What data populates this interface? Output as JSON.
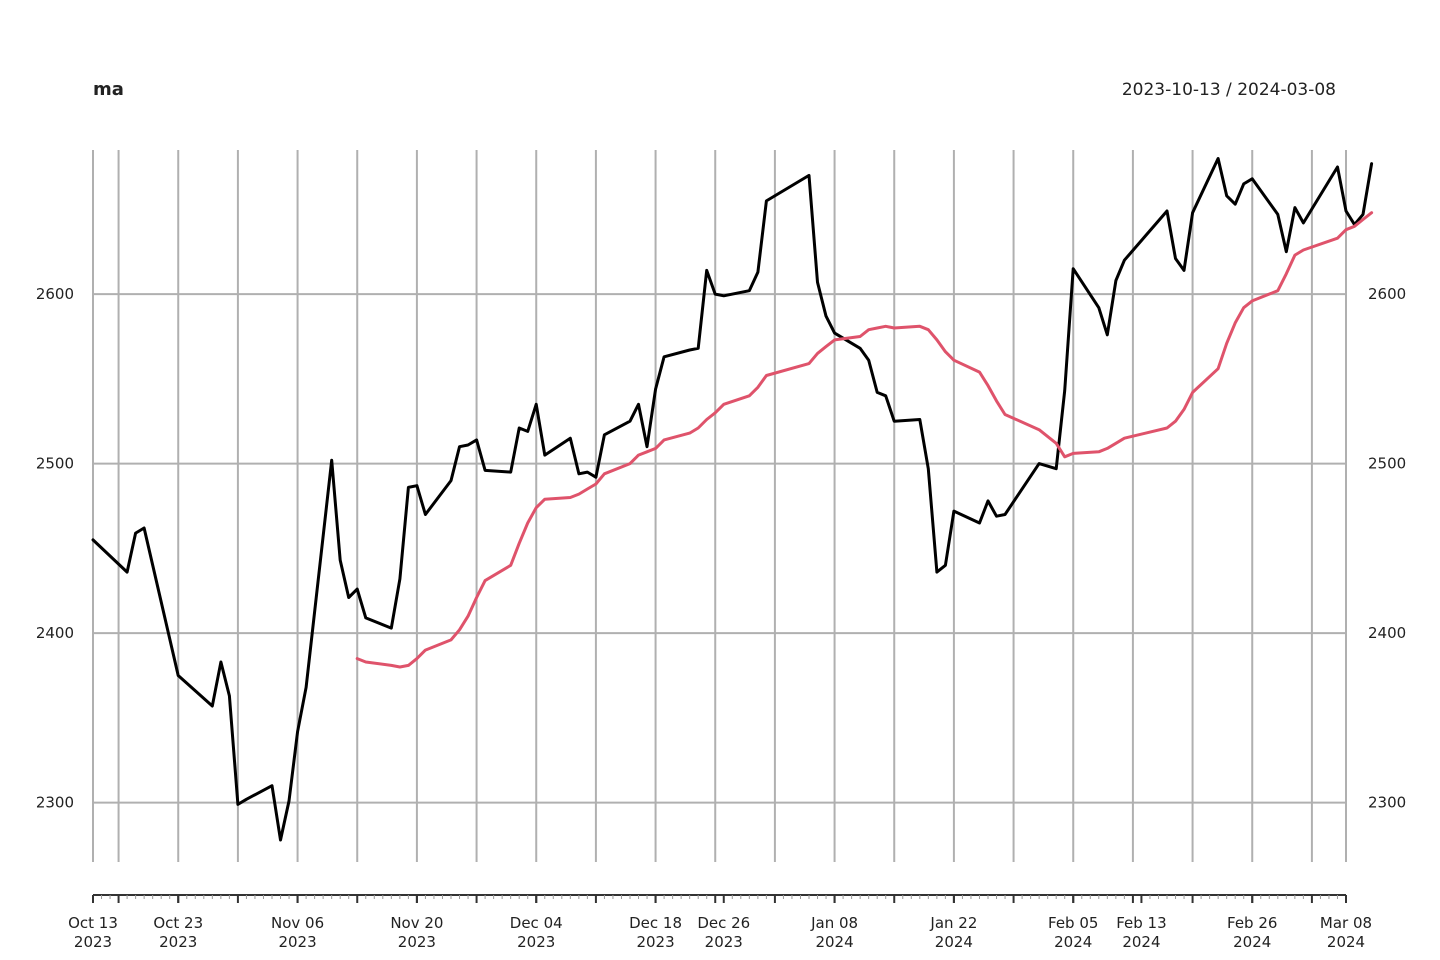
{
  "chart_data": {
    "type": "line",
    "title": "ma",
    "date_range_label": "2023-10-13 / 2024-03-08",
    "xlabel": "",
    "ylabel": "",
    "ylim": [
      2265,
      2685
    ],
    "y_ticks": [
      2300,
      2400,
      2500,
      2600
    ],
    "x_range": [
      "2023-10-13",
      "2024-03-08"
    ],
    "grid": true,
    "x_ticks": [
      {
        "date": "2023-10-13",
        "line1": "Oct 13",
        "line2": "2023"
      },
      {
        "date": "2023-10-23",
        "line1": "Oct 23",
        "line2": "2023"
      },
      {
        "date": "2023-11-06",
        "line1": "Nov 06",
        "line2": "2023"
      },
      {
        "date": "2023-11-20",
        "line1": "Nov 20",
        "line2": "2023"
      },
      {
        "date": "2023-12-04",
        "line1": "Dec 04",
        "line2": "2023"
      },
      {
        "date": "2023-12-18",
        "line1": "Dec 18",
        "line2": "2023"
      },
      {
        "date": "2023-12-26",
        "line1": "Dec 26",
        "line2": "2023"
      },
      {
        "date": "2024-01-08",
        "line1": "Jan 08",
        "line2": "2024"
      },
      {
        "date": "2024-01-22",
        "line1": "Jan 22",
        "line2": "2024"
      },
      {
        "date": "2024-02-05",
        "line1": "Feb 05",
        "line2": "2024"
      },
      {
        "date": "2024-02-13",
        "line1": "Feb 13",
        "line2": "2024"
      },
      {
        "date": "2024-02-26",
        "line1": "Feb 26",
        "line2": "2024"
      },
      {
        "date": "2024-03-08",
        "line1": "Mar 08",
        "line2": "2024"
      }
    ],
    "series": [
      {
        "color": "#000000",
        "points": [
          [
            "2023-10-13",
            2455
          ],
          [
            "2023-10-17",
            2436
          ],
          [
            "2023-10-18",
            2459
          ],
          [
            "2023-10-19",
            2462
          ],
          [
            "2023-10-23",
            2375
          ],
          [
            "2023-10-27",
            2357
          ],
          [
            "2023-10-28",
            2383
          ],
          [
            "2023-10-29",
            2363
          ],
          [
            "2023-10-30",
            2299
          ],
          [
            "2023-10-31",
            2302
          ],
          [
            "2023-11-03",
            2310
          ],
          [
            "2023-11-04",
            2278
          ],
          [
            "2023-11-05",
            2301
          ],
          [
            "2023-11-06",
            2342
          ],
          [
            "2023-11-07",
            2368
          ],
          [
            "2023-11-10",
            2502
          ],
          [
            "2023-11-11",
            2443
          ],
          [
            "2023-11-12",
            2421
          ],
          [
            "2023-11-13",
            2426
          ],
          [
            "2023-11-14",
            2409
          ],
          [
            "2023-11-17",
            2403
          ],
          [
            "2023-11-18",
            2432
          ],
          [
            "2023-11-19",
            2486
          ],
          [
            "2023-11-20",
            2487
          ],
          [
            "2023-11-21",
            2470
          ],
          [
            "2023-11-24",
            2490
          ],
          [
            "2023-11-25",
            2510
          ],
          [
            "2023-11-26",
            2511
          ],
          [
            "2023-11-27",
            2514
          ],
          [
            "2023-11-28",
            2496
          ],
          [
            "2023-12-01",
            2495
          ],
          [
            "2023-12-02",
            2521
          ],
          [
            "2023-12-03",
            2519
          ],
          [
            "2023-12-04",
            2535
          ],
          [
            "2023-12-05",
            2505
          ],
          [
            "2023-12-08",
            2515
          ],
          [
            "2023-12-09",
            2494
          ],
          [
            "2023-12-10",
            2495
          ],
          [
            "2023-12-11",
            2492
          ],
          [
            "2023-12-12",
            2517
          ],
          [
            "2023-12-15",
            2525
          ],
          [
            "2023-12-16",
            2535
          ],
          [
            "2023-12-17",
            2510
          ],
          [
            "2023-12-18",
            2544
          ],
          [
            "2023-12-19",
            2563
          ],
          [
            "2023-12-22",
            2567
          ],
          [
            "2023-12-23",
            2568
          ],
          [
            "2023-12-24",
            2614
          ],
          [
            "2023-12-25",
            2600
          ],
          [
            "2023-12-26",
            2599
          ],
          [
            "2023-12-29",
            2602
          ],
          [
            "2023-12-30",
            2613
          ],
          [
            "2023-12-31",
            2655
          ],
          [
            "2024-01-05",
            2670
          ],
          [
            "2024-01-06",
            2607
          ],
          [
            "2024-01-07",
            2587
          ],
          [
            "2024-01-08",
            2577
          ],
          [
            "2024-01-11",
            2568
          ],
          [
            "2024-01-12",
            2561
          ],
          [
            "2024-01-13",
            2542
          ],
          [
            "2024-01-14",
            2540
          ],
          [
            "2024-01-15",
            2525
          ],
          [
            "2024-01-18",
            2526
          ],
          [
            "2024-01-19",
            2497
          ],
          [
            "2024-01-20",
            2436
          ],
          [
            "2024-01-21",
            2440
          ],
          [
            "2024-01-22",
            2472
          ],
          [
            "2024-01-25",
            2465
          ],
          [
            "2024-01-26",
            2478
          ],
          [
            "2024-01-27",
            2469
          ],
          [
            "2024-01-28",
            2470
          ],
          [
            "2024-02-01",
            2500
          ],
          [
            "2024-02-03",
            2497
          ],
          [
            "2024-02-04",
            2543
          ],
          [
            "2024-02-05",
            2615
          ],
          [
            "2024-02-08",
            2592
          ],
          [
            "2024-02-09",
            2576
          ],
          [
            "2024-02-10",
            2608
          ],
          [
            "2024-02-11",
            2620
          ],
          [
            "2024-02-16",
            2649
          ],
          [
            "2024-02-17",
            2621
          ],
          [
            "2024-02-18",
            2614
          ],
          [
            "2024-02-19",
            2648
          ],
          [
            "2024-02-22",
            2680
          ],
          [
            "2024-02-23",
            2658
          ],
          [
            "2024-02-24",
            2653
          ],
          [
            "2024-02-25",
            2665
          ],
          [
            "2024-02-26",
            2668
          ],
          [
            "2024-02-29",
            2647
          ],
          [
            "2024-03-01",
            2625
          ],
          [
            "2024-03-02",
            2651
          ],
          [
            "2024-03-03",
            2642
          ],
          [
            "2024-03-07",
            2675
          ],
          [
            "2024-03-08",
            2649
          ],
          [
            "2024-03-09",
            2641
          ],
          [
            "2024-03-10",
            2647
          ],
          [
            "2024-03-11",
            2677
          ]
        ]
      },
      {
        "color": "#df536b",
        "points": [
          [
            "2023-11-13",
            2385
          ],
          [
            "2023-11-14",
            2383
          ],
          [
            "2023-11-17",
            2381
          ],
          [
            "2023-11-18",
            2380
          ],
          [
            "2023-11-19",
            2381
          ],
          [
            "2023-11-20",
            2385
          ],
          [
            "2023-11-21",
            2390
          ],
          [
            "2023-11-24",
            2396
          ],
          [
            "2023-11-25",
            2402
          ],
          [
            "2023-11-26",
            2410
          ],
          [
            "2023-11-27",
            2421
          ],
          [
            "2023-11-28",
            2431
          ],
          [
            "2023-12-01",
            2440
          ],
          [
            "2023-12-02",
            2453
          ],
          [
            "2023-12-03",
            2465
          ],
          [
            "2023-12-04",
            2474
          ],
          [
            "2023-12-05",
            2479
          ],
          [
            "2023-12-08",
            2480
          ],
          [
            "2023-12-09",
            2482
          ],
          [
            "2023-12-10",
            2485
          ],
          [
            "2023-12-11",
            2488
          ],
          [
            "2023-12-12",
            2494
          ],
          [
            "2023-12-15",
            2500
          ],
          [
            "2023-12-16",
            2505
          ],
          [
            "2023-12-17",
            2507
          ],
          [
            "2023-12-18",
            2509
          ],
          [
            "2023-12-19",
            2514
          ],
          [
            "2023-12-22",
            2518
          ],
          [
            "2023-12-23",
            2521
          ],
          [
            "2023-12-24",
            2526
          ],
          [
            "2023-12-25",
            2530
          ],
          [
            "2023-12-26",
            2535
          ],
          [
            "2023-12-29",
            2540
          ],
          [
            "2023-12-30",
            2545
          ],
          [
            "2023-12-31",
            2552
          ],
          [
            "2024-01-05",
            2559
          ],
          [
            "2024-01-06",
            2565
          ],
          [
            "2024-01-07",
            2569
          ],
          [
            "2024-01-08",
            2573
          ],
          [
            "2024-01-11",
            2575
          ],
          [
            "2024-01-12",
            2579
          ],
          [
            "2024-01-13",
            2580
          ],
          [
            "2024-01-14",
            2581
          ],
          [
            "2024-01-15",
            2580
          ],
          [
            "2024-01-18",
            2581
          ],
          [
            "2024-01-19",
            2579
          ],
          [
            "2024-01-20",
            2573
          ],
          [
            "2024-01-21",
            2566
          ],
          [
            "2024-01-22",
            2561
          ],
          [
            "2024-01-25",
            2554
          ],
          [
            "2024-01-26",
            2546
          ],
          [
            "2024-01-27",
            2537
          ],
          [
            "2024-01-28",
            2529
          ],
          [
            "2024-02-01",
            2520
          ],
          [
            "2024-02-03",
            2512
          ],
          [
            "2024-02-04",
            2504
          ],
          [
            "2024-02-05",
            2506
          ],
          [
            "2024-02-08",
            2507
          ],
          [
            "2024-02-09",
            2509
          ],
          [
            "2024-02-10",
            2512
          ],
          [
            "2024-02-11",
            2515
          ],
          [
            "2024-02-16",
            2521
          ],
          [
            "2024-02-17",
            2525
          ],
          [
            "2024-02-18",
            2532
          ],
          [
            "2024-02-19",
            2542
          ],
          [
            "2024-02-22",
            2556
          ],
          [
            "2024-02-23",
            2571
          ],
          [
            "2024-02-24",
            2583
          ],
          [
            "2024-02-25",
            2592
          ],
          [
            "2024-02-26",
            2596
          ],
          [
            "2024-02-29",
            2602
          ],
          [
            "2024-03-01",
            2612
          ],
          [
            "2024-03-02",
            2623
          ],
          [
            "2024-03-03",
            2626
          ],
          [
            "2024-03-07",
            2633
          ],
          [
            "2024-03-08",
            2638
          ],
          [
            "2024-03-09",
            2640
          ],
          [
            "2024-03-10",
            2644
          ],
          [
            "2024-03-11",
            2648
          ]
        ]
      }
    ]
  }
}
